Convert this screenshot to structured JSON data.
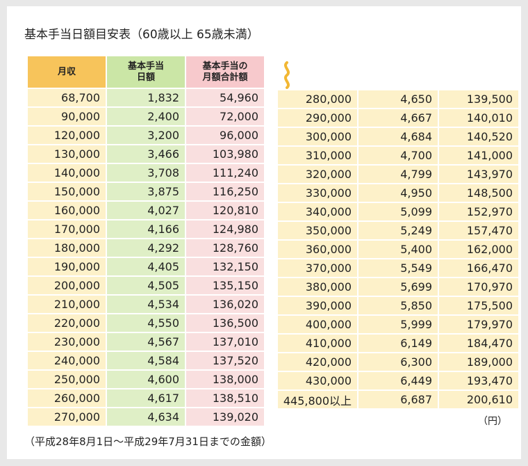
{
  "title": "基本手当日額目安表（60歳以上 65歳未満）",
  "headers": [
    "月収",
    "基本手当\n日額",
    "基本手当の\n月額合計額"
  ],
  "left_rows": [
    [
      "68,700",
      "1,832",
      "54,960"
    ],
    [
      "90,000",
      "2,400",
      "72,000"
    ],
    [
      "120,000",
      "3,200",
      "96,000"
    ],
    [
      "130,000",
      "3,466",
      "103,980"
    ],
    [
      "140,000",
      "3,708",
      "111,240"
    ],
    [
      "150,000",
      "3,875",
      "116,250"
    ],
    [
      "160,000",
      "4,027",
      "120,810"
    ],
    [
      "170,000",
      "4,166",
      "124,980"
    ],
    [
      "180,000",
      "4,292",
      "128,760"
    ],
    [
      "190,000",
      "4,405",
      "132,150"
    ],
    [
      "200,000",
      "4,505",
      "135,150"
    ],
    [
      "210,000",
      "4,534",
      "136,020"
    ],
    [
      "220,000",
      "4,550",
      "136,500"
    ],
    [
      "230,000",
      "4,567",
      "137,010"
    ],
    [
      "240,000",
      "4,584",
      "137,520"
    ],
    [
      "250,000",
      "4,600",
      "138,000"
    ],
    [
      "260,000",
      "4,617",
      "138,510"
    ],
    [
      "270,000",
      "4,634",
      "139,020"
    ]
  ],
  "right_rows": [
    [
      "280,000",
      "4,650",
      "139,500"
    ],
    [
      "290,000",
      "4,667",
      "140,010"
    ],
    [
      "300,000",
      "4,684",
      "140,520"
    ],
    [
      "310,000",
      "4,700",
      "141,000"
    ],
    [
      "320,000",
      "4,799",
      "143,970"
    ],
    [
      "330,000",
      "4,950",
      "148,500"
    ],
    [
      "340,000",
      "5,099",
      "152,970"
    ],
    [
      "350,000",
      "5,249",
      "157,470"
    ],
    [
      "360,000",
      "5,400",
      "162,000"
    ],
    [
      "370,000",
      "5,549",
      "166,470"
    ],
    [
      "380,000",
      "5,699",
      "170,970"
    ],
    [
      "390,000",
      "5,850",
      "175,500"
    ],
    [
      "400,000",
      "5,999",
      "179,970"
    ],
    [
      "410,000",
      "6,149",
      "184,470"
    ],
    [
      "420,000",
      "6,300",
      "189,000"
    ],
    [
      "430,000",
      "6,449",
      "193,470"
    ],
    [
      "445,800以上",
      "6,687",
      "200,610"
    ]
  ],
  "unit": "（円）",
  "note": "（平成28年8月1日〜平成29年7月31日までの金額）",
  "colors": {
    "header_income": "#f7c45b",
    "header_daily": "#cbe6a6",
    "header_monthly": "#f7c9cc",
    "cell_income": "#fdf1c9",
    "cell_daily": "#dfefc6",
    "cell_monthly": "#f9dfdf",
    "wave": "#f2b733"
  }
}
